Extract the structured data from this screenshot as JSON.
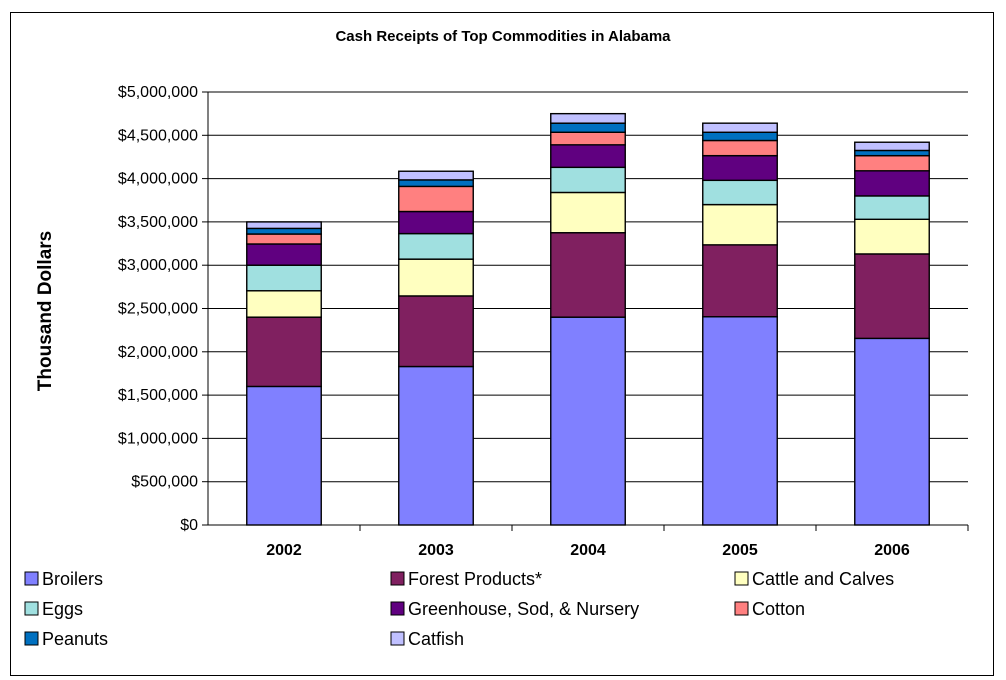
{
  "chart_data": {
    "type": "bar",
    "stacked": true,
    "title": "Cash Receipts of Top Commodities in Alabama",
    "xlabel": "",
    "ylabel": "Thousand Dollars",
    "ylim": [
      0,
      5000000
    ],
    "yticks": [
      0,
      500000,
      1000000,
      1500000,
      2000000,
      2500000,
      3000000,
      3500000,
      4000000,
      4500000,
      5000000
    ],
    "ytick_labels": [
      "$0",
      "$500,000",
      "$1,000,000",
      "$1,500,000",
      "$2,000,000",
      "$2,500,000",
      "$3,000,000",
      "$3,500,000",
      "$4,000,000",
      "$4,500,000",
      "$5,000,000"
    ],
    "grid": true,
    "legend_position": "bottom",
    "categories": [
      "2002",
      "2003",
      "2004",
      "2005",
      "2006"
    ],
    "series": [
      {
        "name": "Broilers",
        "color": "#8080ff",
        "values": [
          1600000,
          1830000,
          2400000,
          2405000,
          2155000
        ]
      },
      {
        "name": "Forest Products*",
        "color": "#802060",
        "values": [
          800000,
          815000,
          975000,
          830000,
          975000
        ]
      },
      {
        "name": "Cattle and Calves",
        "color": "#ffffc0",
        "values": [
          305000,
          425000,
          465000,
          465000,
          400000
        ]
      },
      {
        "name": "Eggs",
        "color": "#a0e0e0",
        "values": [
          295000,
          295000,
          290000,
          280000,
          270000
        ]
      },
      {
        "name": "Greenhouse, Sod, & Nursery",
        "color": "#600080",
        "values": [
          245000,
          255000,
          260000,
          285000,
          290000
        ]
      },
      {
        "name": "Cotton",
        "color": "#ff8080",
        "values": [
          115000,
          290000,
          145000,
          175000,
          175000
        ]
      },
      {
        "name": "Peanuts",
        "color": "#0070c0",
        "values": [
          65000,
          75000,
          105000,
          95000,
          60000
        ]
      },
      {
        "name": "Catfish",
        "color": "#c0c0ff",
        "values": [
          75000,
          100000,
          110000,
          105000,
          95000
        ]
      }
    ]
  }
}
